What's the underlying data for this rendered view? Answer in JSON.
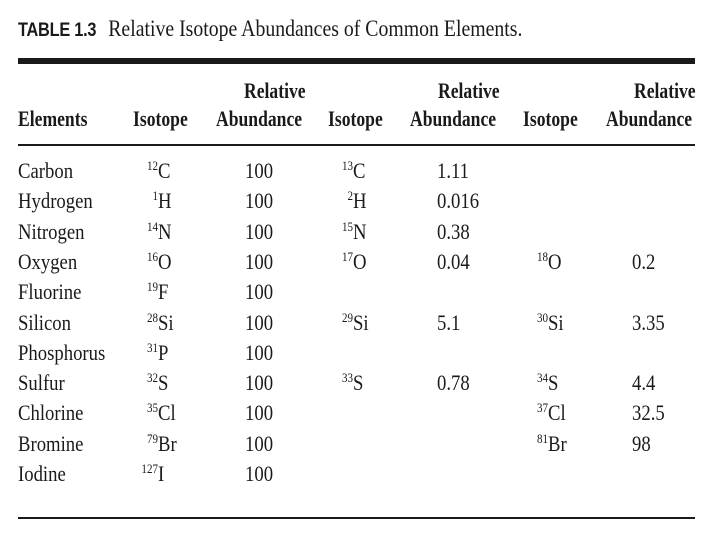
{
  "title": {
    "label": "TABLE 1.3",
    "text": "Relative Isotope Abundances of Common Elements."
  },
  "headers": {
    "elements": "Elements",
    "isotope": "Isotope",
    "relative": "Relative",
    "abundance": "Abundance"
  },
  "rows": [
    {
      "element": "Carbon",
      "isotopes": [
        {
          "mass": "12",
          "symbol": "C",
          "abundance": "100"
        },
        {
          "mass": "13",
          "symbol": "C",
          "abundance": "1.11"
        }
      ]
    },
    {
      "element": "Hydrogen",
      "isotopes": [
        {
          "mass": "1",
          "symbol": "H",
          "abundance": "100"
        },
        {
          "mass": "2",
          "symbol": "H",
          "abundance": "0.016"
        }
      ]
    },
    {
      "element": "Nitrogen",
      "isotopes": [
        {
          "mass": "14",
          "symbol": "N",
          "abundance": "100"
        },
        {
          "mass": "15",
          "symbol": "N",
          "abundance": "0.38"
        }
      ]
    },
    {
      "element": "Oxygen",
      "isotopes": [
        {
          "mass": "16",
          "symbol": "O",
          "abundance": "100"
        },
        {
          "mass": "17",
          "symbol": "O",
          "abundance": "0.04"
        },
        {
          "mass": "18",
          "symbol": "O",
          "abundance": "0.2"
        }
      ]
    },
    {
      "element": "Fluorine",
      "isotopes": [
        {
          "mass": "19",
          "symbol": "F",
          "abundance": "100"
        }
      ]
    },
    {
      "element": "Silicon",
      "isotopes": [
        {
          "mass": "28",
          "symbol": "Si",
          "abundance": "100"
        },
        {
          "mass": "29",
          "symbol": "Si",
          "abundance": "5.1"
        },
        {
          "mass": "30",
          "symbol": "Si",
          "abundance": "3.35"
        }
      ]
    },
    {
      "element": "Phosphorus",
      "isotopes": [
        {
          "mass": "31",
          "symbol": "P",
          "abundance": "100"
        }
      ]
    },
    {
      "element": "Sulfur",
      "isotopes": [
        {
          "mass": "32",
          "symbol": "S",
          "abundance": "100"
        },
        {
          "mass": "33",
          "symbol": "S",
          "abundance": "0.78"
        },
        {
          "mass": "34",
          "symbol": "S",
          "abundance": "4.4"
        }
      ]
    },
    {
      "element": "Chlorine",
      "isotopes": [
        {
          "mass": "35",
          "symbol": "Cl",
          "abundance": "100"
        },
        null,
        {
          "mass": "37",
          "symbol": "Cl",
          "abundance": "32.5"
        }
      ]
    },
    {
      "element": "Bromine",
      "isotopes": [
        {
          "mass": "79",
          "symbol": "Br",
          "abundance": "100"
        },
        null,
        {
          "mass": "81",
          "symbol": "Br",
          "abundance": "98"
        }
      ]
    },
    {
      "element": "Iodine",
      "isotopes": [
        {
          "mass": "127",
          "symbol": "I",
          "abundance": "100"
        }
      ]
    }
  ]
}
